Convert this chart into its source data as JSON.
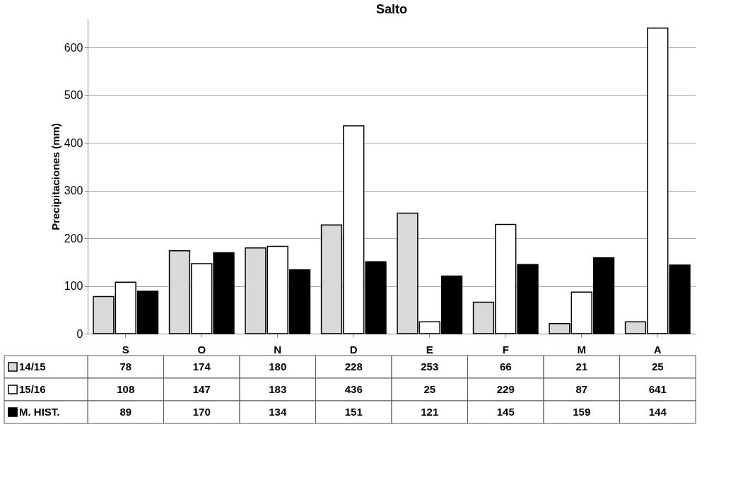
{
  "chart_data": {
    "type": "bar",
    "title": "Salto",
    "ylabel": "Precipitaciones (mm)",
    "categories": [
      "S",
      "O",
      "N",
      "D",
      "E",
      "F",
      "M",
      "A"
    ],
    "series": [
      {
        "name": "14/15",
        "color": "#d9d9d9",
        "values": [
          78,
          174,
          180,
          228,
          253,
          66,
          21,
          25
        ]
      },
      {
        "name": "15/16",
        "color": "#ffffff",
        "values": [
          108,
          147,
          183,
          436,
          25,
          229,
          87,
          641
        ]
      },
      {
        "name": "M. HIST.",
        "color": "#000000",
        "values": [
          89,
          170,
          134,
          151,
          121,
          145,
          159,
          144
        ]
      }
    ],
    "ylim": [
      0,
      660
    ],
    "yticks": [
      0,
      100,
      200,
      300,
      400,
      500,
      600
    ],
    "grid": "y",
    "legend": "bottom",
    "data_labels": true
  }
}
